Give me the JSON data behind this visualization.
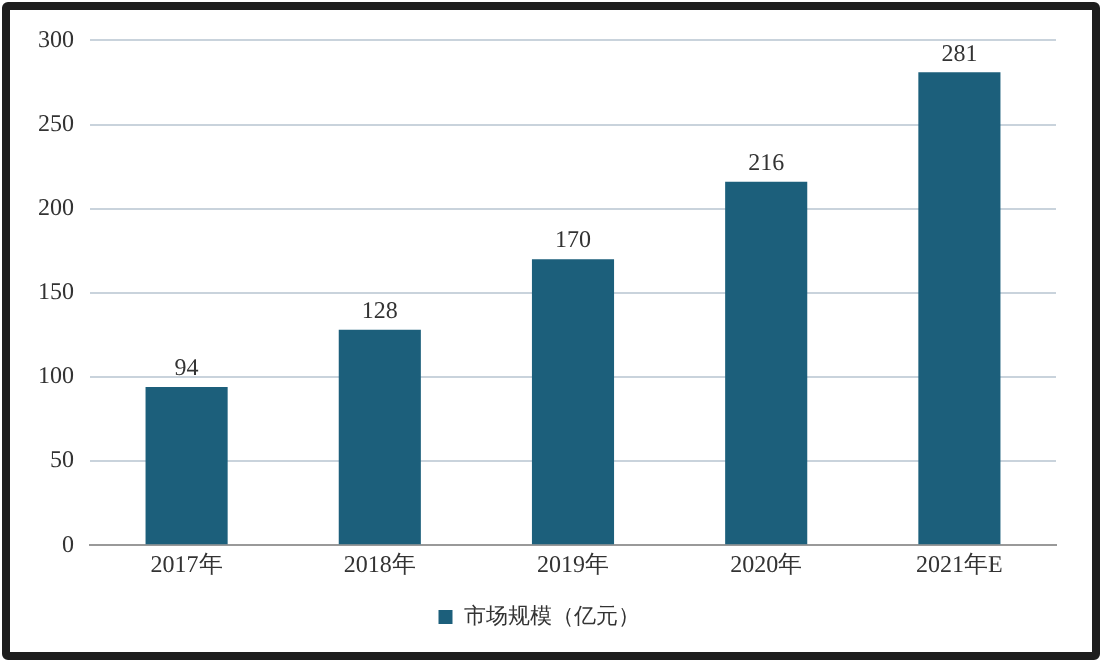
{
  "chart_data": {
    "type": "bar",
    "categories": [
      "2017年",
      "2018年",
      "2019年",
      "2020年",
      "2021年E"
    ],
    "series": [
      {
        "name": "市场规模（亿元）",
        "color": "#1c5f7b",
        "values": [
          94,
          128,
          170,
          216,
          281
        ]
      }
    ],
    "ylim": [
      0,
      300
    ],
    "yticks": [
      0,
      50,
      100,
      150,
      200,
      250,
      300
    ],
    "grid": "y",
    "legend": "bottom",
    "data_labels": true
  }
}
